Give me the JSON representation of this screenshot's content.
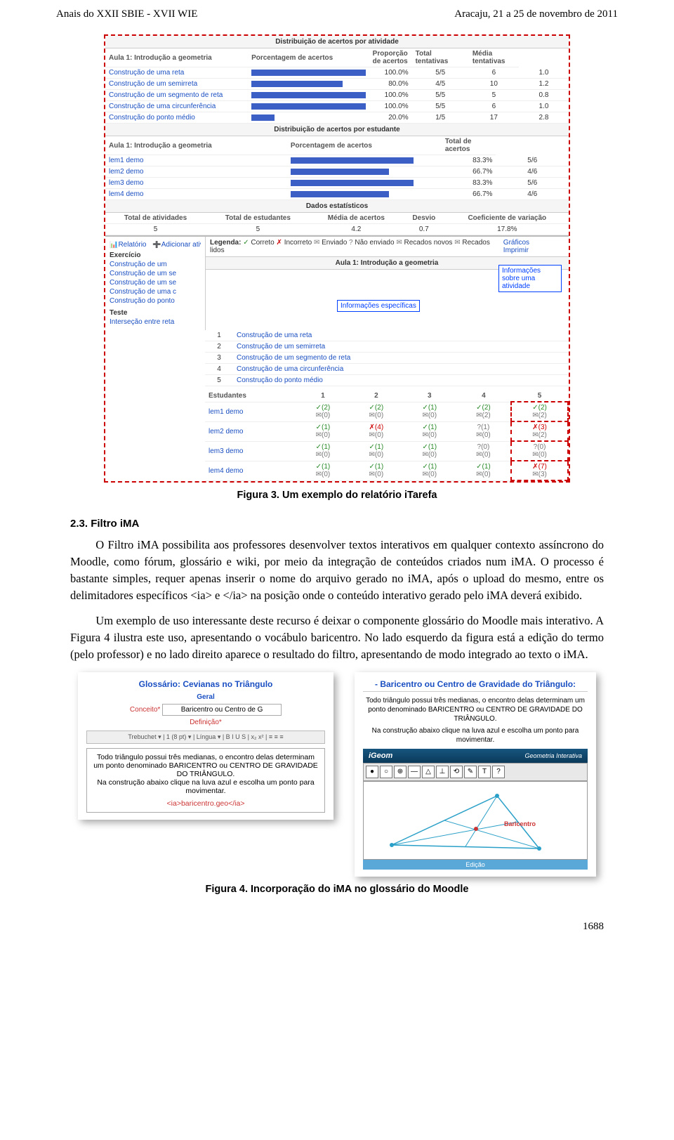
{
  "header": {
    "left": "Anais do XXII SBIE - XVII WIE",
    "right": "Aracaju, 21 a 25 de novembro de 2011"
  },
  "figure3": {
    "caption": "Figura 3. Um exemplo do relatório iTarefa",
    "dist_act_title": "Distribuição de acertos por atividade",
    "dist_act_cols": [
      "Aula 1: Introdução a geometria",
      "Porcentagem de acertos",
      "Proporção de acertos",
      "Total tentativas",
      "Média tentativas"
    ],
    "dist_act_rows": [
      {
        "name": "Construção de uma reta",
        "pct": 100.0,
        "prop": "5/5",
        "tot": 6,
        "avg": 1.0
      },
      {
        "name": "Construção de um semirreta",
        "pct": 80.0,
        "prop": "4/5",
        "tot": 10,
        "avg": 1.2
      },
      {
        "name": "Construção de um segmento de reta",
        "pct": 100.0,
        "prop": "5/5",
        "tot": 5,
        "avg": 0.8
      },
      {
        "name": "Construção de uma circunferência",
        "pct": 100.0,
        "prop": "5/5",
        "tot": 6,
        "avg": 1.0
      },
      {
        "name": "Construção do ponto médio",
        "pct": 20.0,
        "prop": "1/5",
        "tot": 17,
        "avg": 2.8
      }
    ],
    "dist_stu_title": "Distribuição de acertos por estudante",
    "dist_stu_cols": [
      "Aula 1: Introdução a geometria",
      "Porcentagem de acertos",
      "Total de acertos"
    ],
    "dist_stu_rows": [
      {
        "name": "lem1 demo",
        "pct": 83.3,
        "tot": "5/6"
      },
      {
        "name": "lem2 demo",
        "pct": 66.7,
        "tot": "4/6"
      },
      {
        "name": "lem3 demo",
        "pct": 83.3,
        "tot": "5/6"
      },
      {
        "name": "lem4 demo",
        "pct": 66.7,
        "tot": "4/6"
      }
    ],
    "stats_title": "Dados estatísticos",
    "stats_cols": [
      "Total de atividades",
      "Total de estudantes",
      "Média de acertos",
      "Desvio",
      "Coeficiente de variação"
    ],
    "stats_vals": [
      "5",
      "5",
      "4.2",
      "0.7",
      "17.8%"
    ],
    "toolbar_links": [
      "Relatório",
      "Adicionar atividade"
    ],
    "legend_label": "Legenda:",
    "legend_items": [
      "Correto",
      "Incorreto",
      "Enviado",
      "Não enviado",
      "Recados novos",
      "Recados lidos"
    ],
    "right_links": [
      "Gráficos",
      "Imprimir"
    ],
    "sidebar_header1": "Exercício",
    "sidebar_items1": [
      "Construção de um",
      "Construção de um se",
      "Construção de um se",
      "Construção de uma c",
      "Construção do ponto"
    ],
    "sidebar_header2": "Teste",
    "sidebar_items2": [
      "Interseção entre reta"
    ],
    "aula_title": "Aula 1: Introdução a geometria",
    "aula_rows": [
      {
        "n": "1",
        "t": "Construção de uma reta"
      },
      {
        "n": "2",
        "t": "Construção de um semirreta"
      },
      {
        "n": "3",
        "t": "Construção de um segmento de reta"
      },
      {
        "n": "4",
        "t": "Construção de uma circunferência"
      },
      {
        "n": "5",
        "t": "Construção do ponto médio"
      }
    ],
    "students_header": "Estudantes",
    "students_cols": [
      "1",
      "2",
      "3",
      "4",
      "5"
    ],
    "students": [
      {
        "name": "lem1 demo",
        "cells": [
          [
            "✓(2)",
            "✉(0)"
          ],
          [
            "✓(2)",
            "✉(0)"
          ],
          [
            "✓(1)",
            "✉(0)"
          ],
          [
            "✓(2)",
            "✉(2)"
          ],
          [
            "✓(2)",
            "✉(2)"
          ]
        ]
      },
      {
        "name": "lem2 demo",
        "cells": [
          [
            "✓(1)",
            "✉(0)"
          ],
          [
            "✗(4)",
            "✉(0)"
          ],
          [
            "✓(1)",
            "✉(0)"
          ],
          [
            "?(1)",
            "✉(0)"
          ],
          [
            "✗(3)",
            "✉(2)"
          ]
        ]
      },
      {
        "name": "lem3 demo",
        "cells": [
          [
            "✓(1)",
            "✉(0)"
          ],
          [
            "✓(1)",
            "✉(0)"
          ],
          [
            "✓(1)",
            "✉(0)"
          ],
          [
            "?(0)",
            "✉(0)"
          ],
          [
            "?(0)",
            "✉(0)"
          ]
        ]
      },
      {
        "name": "lem4 demo",
        "cells": [
          [
            "✓(1)",
            "✉(0)"
          ],
          [
            "✓(1)",
            "✉(0)"
          ],
          [
            "✓(1)",
            "✉(0)"
          ],
          [
            "✓(1)",
            "✉(0)"
          ],
          [
            "✗(7)",
            "✉(3)"
          ]
        ]
      }
    ],
    "callout1": "Informações específicas",
    "callout2": "Informações sobre uma atividade",
    "colors": {
      "bar": "#3b5fc5",
      "dashed": "#cc0000",
      "link": "#1a4fc2",
      "callout": "#0040ff"
    }
  },
  "section": {
    "num": "2.3.",
    "title": "Filtro iMA"
  },
  "paragraphs": {
    "p1": "O Filtro iMA possibilita aos professores desenvolver textos interativos em qualquer contexto assíncrono do Moodle, como fórum, glossário e wiki, por meio da integração de conteúdos criados num iMA. O processo é bastante simples, requer apenas inserir o nome do arquivo gerado no iMA, após o upload do mesmo, entre os delimitadores específicos <ia> e </ia> na posição onde o conteúdo interativo gerado pelo iMA deverá exibido.",
    "p2": "Um exemplo de uso interessante deste recurso é deixar o componente glossário do Moodle mais interativo. A Figura 4 ilustra este uso, apresentando o vocábulo baricentro. No lado esquerdo da figura está a edição do termo (pelo professor) e no lado direito aparece o resultado do filtro, apresentando de modo integrado ao texto o iMA."
  },
  "figure4": {
    "caption": "Figura 4. Incorporação do iMA no glossário do Moodle",
    "left": {
      "title": "Glossário: Cevianas no Triângulo",
      "group": "Geral",
      "concept_label": "Conceito*",
      "concept_value": "Baricentro ou Centro de G",
      "def_label": "Definição*",
      "toolbar": "Trebuchet ▾ | 1 (8 pt) ▾ | Língua ▾ | B I U S | x₂ x² | ≡ ≡ ≡",
      "textarea_lines": [
        "Todo triângulo possui três medianas, o encontro delas determinam um ponto denominado BARICENTRO ou CENTRO DE GRAVIDADE DO TRIÂNGULO.",
        "Na construção abaixo clique na luva azul e escolha um ponto para movimentar."
      ],
      "tag_line": "<ia>baricentro.geo</ia>"
    },
    "right": {
      "header": "- Baricentro ou Centro de Gravidade do Triângulo:",
      "desc": "Todo triângulo possui três medianas, o encontro delas determinam um ponto denominado BARICENTRO ou CENTRO DE GRAVIDADE DO TRIÂNGULO.",
      "desc2": "Na construção abaixo clique na luva azul e escolha um ponto para movimentar.",
      "applet_title": "iGeom",
      "applet_sub": "Geometria Interativa",
      "toolbar_btns": [
        "●",
        "○",
        "⊕",
        "—",
        "△",
        "⊥",
        "⟲",
        "✎",
        "T",
        "?"
      ],
      "vertex_label": "Baricentro",
      "footer": "Edição",
      "colors": {
        "bar": "#0d4a73",
        "canvas_border": "#888888"
      }
    }
  },
  "pagenum": "1688"
}
